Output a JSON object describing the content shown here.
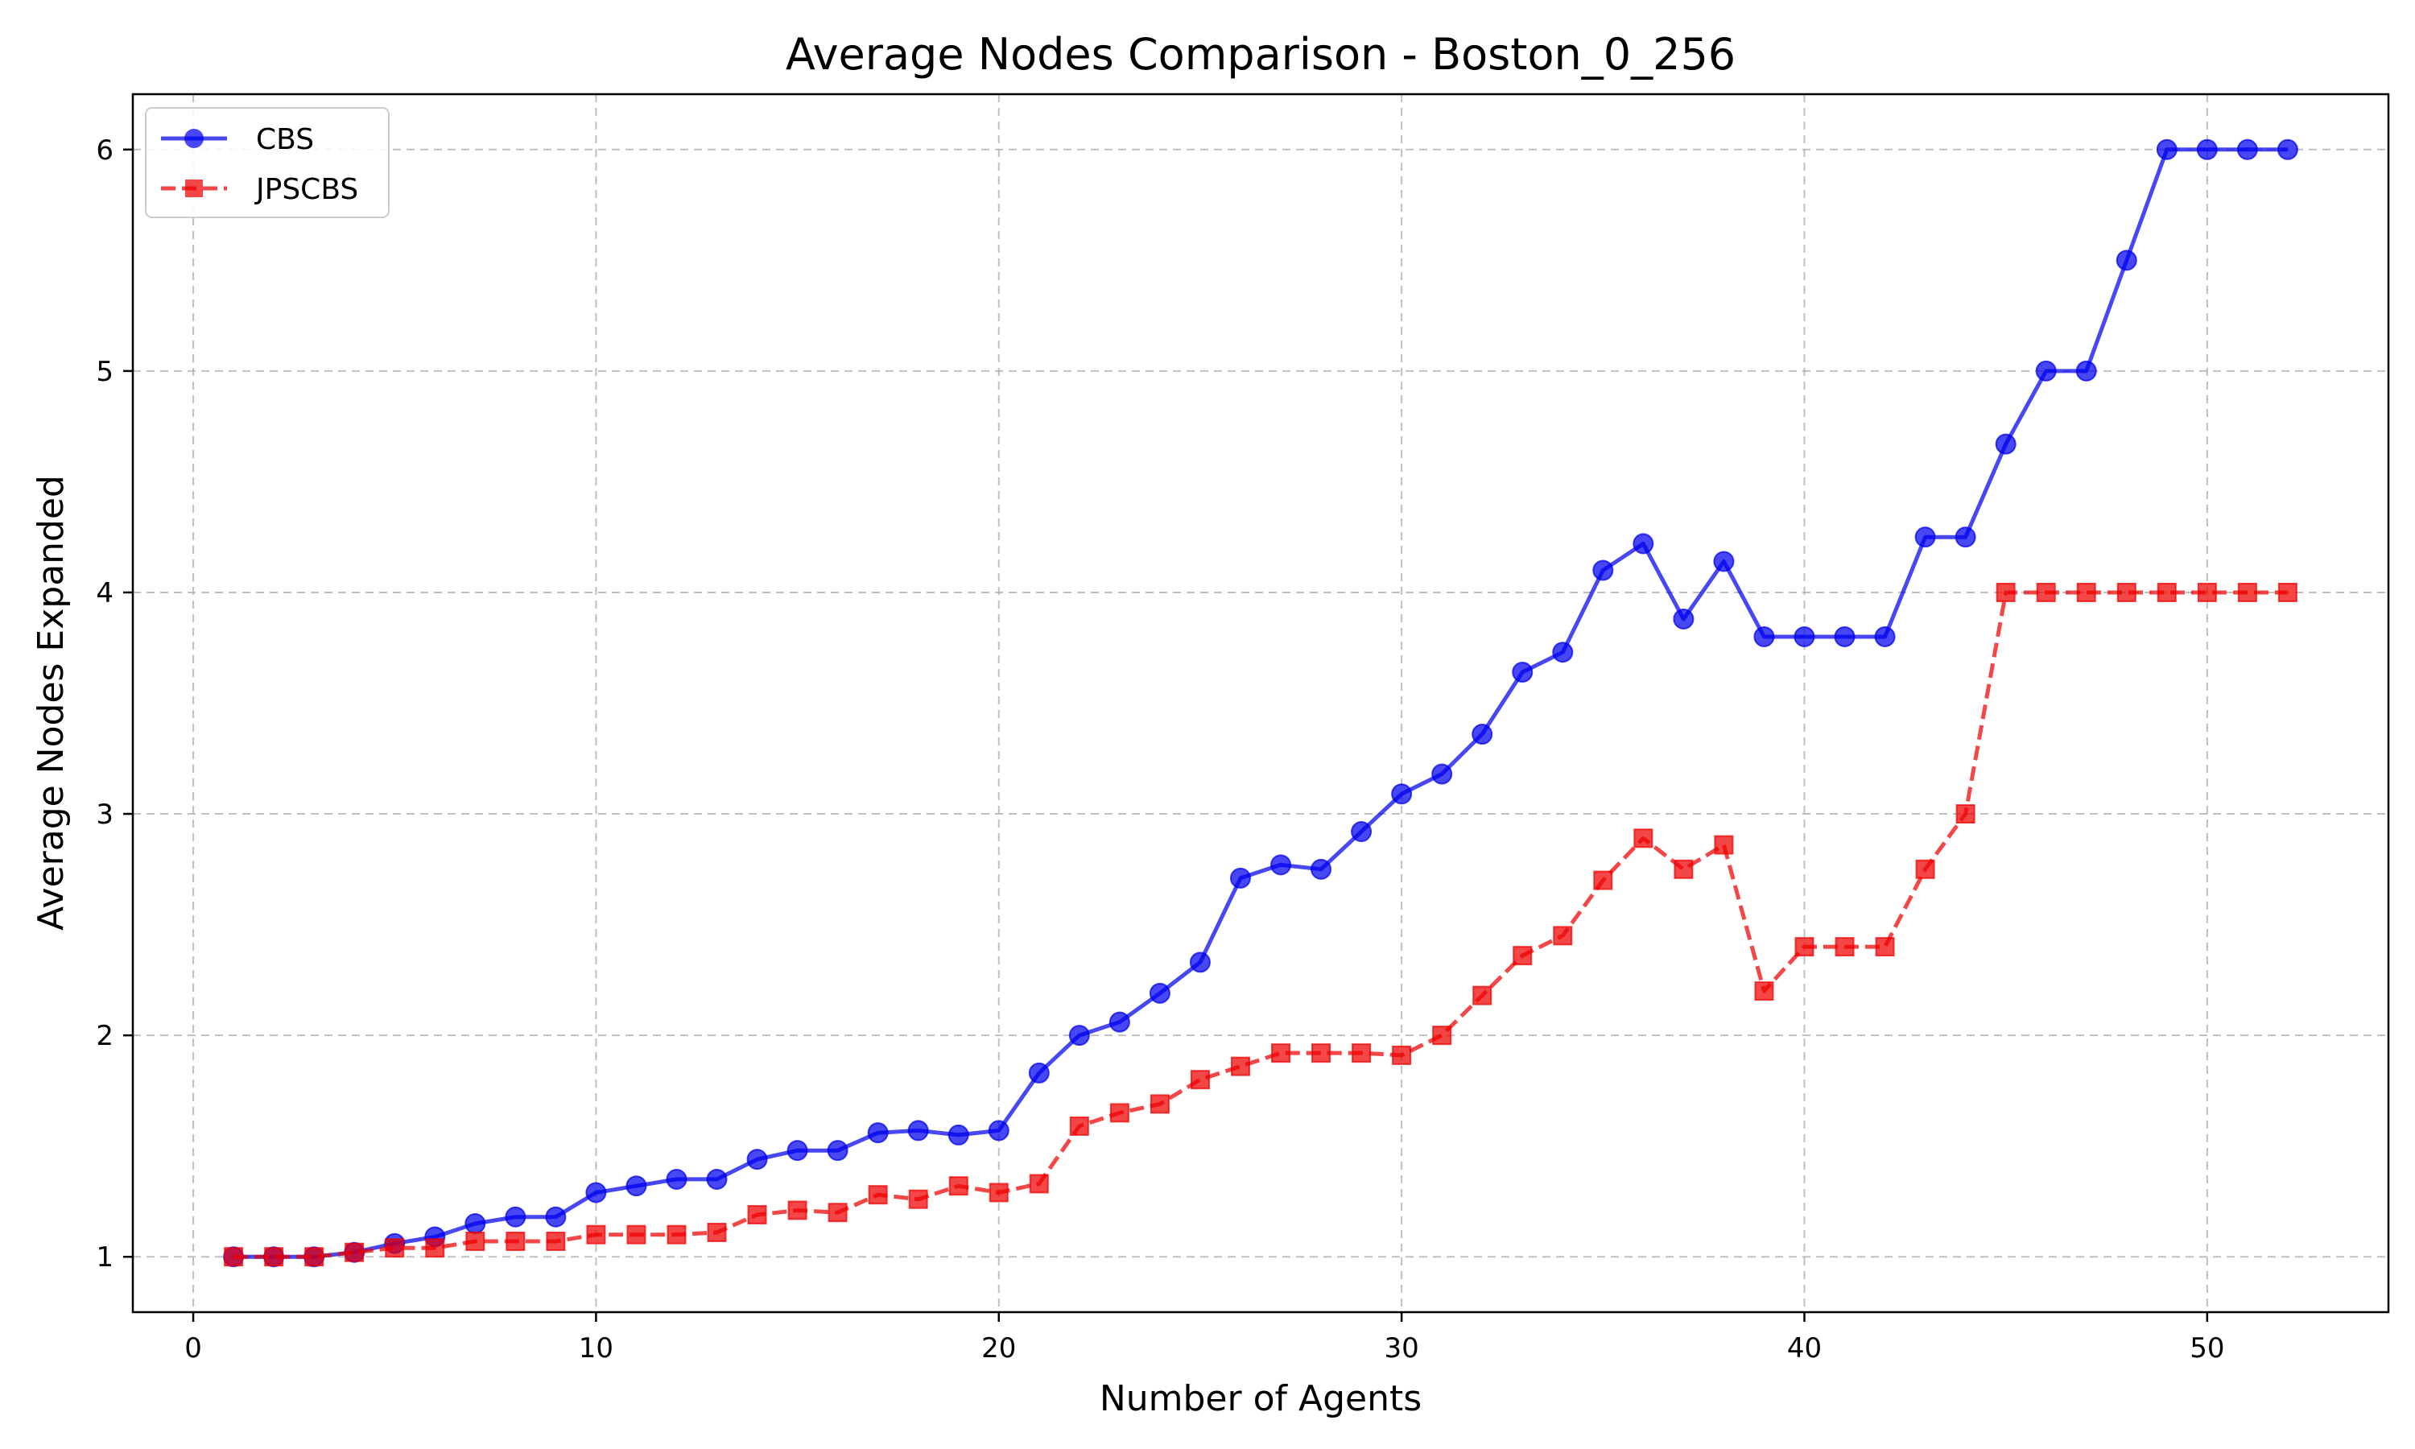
{
  "chart_data": {
    "type": "line",
    "title": "Average Nodes Comparison - Boston_0_256",
    "xlabel": "Number of Agents",
    "ylabel": "Average Nodes Expanded",
    "xlim": [
      -1.5,
      54.5
    ],
    "ylim": [
      0.75,
      6.25
    ],
    "xticks": [
      0,
      10,
      20,
      30,
      40,
      50
    ],
    "yticks": [
      1,
      2,
      3,
      4,
      5,
      6
    ],
    "grid": true,
    "legend_position": "top-left",
    "x": [
      1,
      2,
      3,
      4,
      5,
      6,
      7,
      8,
      9,
      10,
      11,
      12,
      13,
      14,
      15,
      16,
      17,
      18,
      19,
      20,
      21,
      22,
      23,
      24,
      25,
      26,
      27,
      28,
      29,
      30,
      31,
      32,
      33,
      34,
      35,
      36,
      37,
      38,
      39,
      40,
      41,
      42,
      43,
      44,
      45,
      46,
      47,
      48,
      49,
      50,
      51,
      52
    ],
    "series": [
      {
        "name": "CBS",
        "color": "#0000ee",
        "marker": "circle",
        "linestyle": "solid",
        "values": [
          1.0,
          1.0,
          1.0,
          1.02,
          1.06,
          1.09,
          1.15,
          1.18,
          1.18,
          1.29,
          1.32,
          1.35,
          1.35,
          1.44,
          1.48,
          1.48,
          1.56,
          1.57,
          1.55,
          1.57,
          1.83,
          2.0,
          2.06,
          2.19,
          2.33,
          2.71,
          2.77,
          2.75,
          2.92,
          3.09,
          3.18,
          3.36,
          3.64,
          3.73,
          4.1,
          4.22,
          3.88,
          4.14,
          3.8,
          3.8,
          3.8,
          3.8,
          4.25,
          4.25,
          4.67,
          5.0,
          5.0,
          5.5,
          6.0,
          6.0,
          6.0,
          6.0
        ]
      },
      {
        "name": "JPSCBS",
        "color": "#ee0000",
        "marker": "square",
        "linestyle": "dashed",
        "values": [
          1.0,
          1.0,
          1.0,
          1.02,
          1.04,
          1.04,
          1.07,
          1.07,
          1.07,
          1.1,
          1.1,
          1.1,
          1.11,
          1.19,
          1.21,
          1.2,
          1.28,
          1.26,
          1.32,
          1.29,
          1.33,
          1.59,
          1.65,
          1.69,
          1.8,
          1.86,
          1.92,
          1.92,
          1.92,
          1.91,
          2.0,
          2.18,
          2.36,
          2.45,
          2.7,
          2.89,
          2.75,
          2.86,
          2.2,
          2.4,
          2.4,
          2.4,
          2.75,
          3.0,
          4.0,
          4.0,
          4.0,
          4.0,
          4.0,
          4.0,
          4.0,
          4.0
        ]
      }
    ]
  }
}
